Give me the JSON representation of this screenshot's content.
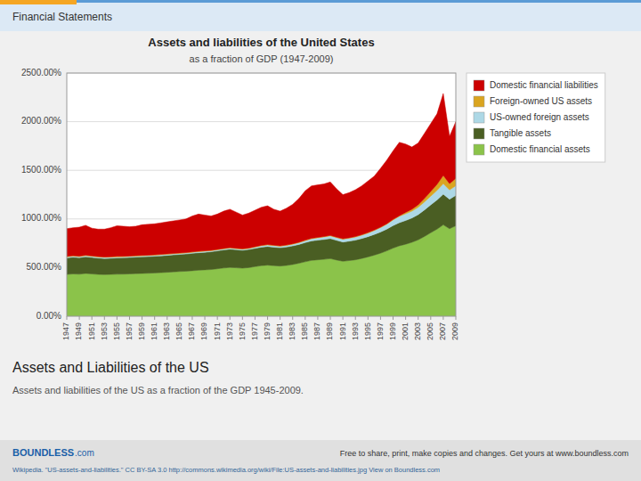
{
  "header": "Financial Statements",
  "heading": "Assets and Liabilities of the US",
  "description": "Assets and liabilities of the US as a fraction of the GDP 1945-2009.",
  "brand": "BOUNDLESS",
  "brand_suffix": ".com",
  "footer_note": "Free to share, print, make copies and changes. Get yours at www.boundless.com",
  "source": "Wikipedia. \"US-assets-and-liabilities.\" CC BY-SA 3.0 http://commons.wikimedia.org/wiki/File:US-assets-and-liabilities.jpg View on Boundless.com",
  "chart_data": {
    "type": "area",
    "stacked": true,
    "title": "Assets and liabilities of the United States",
    "subtitle": "as a fraction of GDP (1947-2009)",
    "x": [
      1947,
      1948,
      1949,
      1950,
      1951,
      1952,
      1953,
      1954,
      1955,
      1956,
      1957,
      1958,
      1959,
      1960,
      1961,
      1962,
      1963,
      1964,
      1965,
      1966,
      1967,
      1968,
      1969,
      1970,
      1971,
      1972,
      1973,
      1974,
      1975,
      1976,
      1977,
      1978,
      1979,
      1980,
      1981,
      1982,
      1983,
      1984,
      1985,
      1986,
      1987,
      1988,
      1989,
      1990,
      1991,
      1992,
      1993,
      1994,
      1995,
      1996,
      1997,
      1998,
      1999,
      2000,
      2001,
      2002,
      2003,
      2004,
      2005,
      2006,
      2007,
      2008,
      2009
    ],
    "series": [
      {
        "name": "Domestic financial assets",
        "color": "#8BC34A",
        "values": [
          430,
          435,
          432,
          440,
          435,
          430,
          428,
          430,
          432,
          433,
          435,
          438,
          440,
          442,
          445,
          448,
          452,
          456,
          460,
          463,
          468,
          473,
          477,
          480,
          488,
          496,
          502,
          498,
          494,
          500,
          510,
          520,
          525,
          520,
          516,
          522,
          532,
          545,
          560,
          574,
          580,
          585,
          592,
          578,
          565,
          572,
          580,
          594,
          610,
          628,
          648,
          672,
          700,
          724,
          740,
          760,
          785,
          820,
          858,
          895,
          940,
          900,
          930
        ]
      },
      {
        "name": "Tangible assets",
        "color": "#4A5E23",
        "values": [
          170,
          172,
          170,
          172,
          170,
          168,
          166,
          166,
          168,
          168,
          169,
          170,
          171,
          171,
          172,
          173,
          174,
          175,
          176,
          177,
          179,
          180,
          181,
          183,
          184,
          186,
          188,
          186,
          184,
          186,
          188,
          190,
          192,
          190,
          188,
          189,
          191,
          193,
          197,
          200,
          202,
          204,
          206,
          202,
          198,
          200,
          202,
          205,
          208,
          213,
          218,
          224,
          232,
          238,
          244,
          250,
          260,
          273,
          287,
          300,
          315,
          303,
          312
        ]
      },
      {
        "name": "US-owned foreign assets",
        "color": "#ADD8E6",
        "values": [
          10,
          10,
          10,
          10,
          10,
          10,
          10,
          10,
          10,
          10,
          10,
          10,
          10,
          10,
          10,
          10,
          10,
          10,
          10,
          10,
          10,
          10,
          10,
          10,
          10,
          10,
          10,
          10,
          10,
          10,
          12,
          14,
          15,
          15,
          15,
          16,
          17,
          18,
          20,
          22,
          24,
          26,
          28,
          28,
          28,
          30,
          32,
          34,
          37,
          40,
          45,
          50,
          58,
          65,
          68,
          70,
          75,
          82,
          90,
          98,
          108,
          95,
          100
        ]
      },
      {
        "name": "Foreign-owned US assets",
        "color": "#DAA520",
        "values": [
          5,
          5,
          5,
          5,
          5,
          5,
          5,
          5,
          5,
          5,
          5,
          5,
          5,
          5,
          5,
          5,
          5,
          5,
          5,
          5,
          5,
          5,
          5,
          5,
          5,
          5,
          5,
          5,
          5,
          5,
          5,
          5,
          5,
          5,
          5,
          5,
          5,
          5,
          5,
          5,
          5,
          5,
          5,
          5,
          5,
          5,
          5,
          5,
          5,
          5,
          5,
          5,
          5,
          5,
          15,
          20,
          25,
          35,
          48,
          62,
          85,
          65,
          75
        ]
      },
      {
        "name": "Domestic financial liabilities",
        "color": "#CC0000",
        "values": [
          285,
          288,
          298,
          308,
          285,
          282,
          286,
          299,
          315,
          309,
          301,
          302,
          314,
          317,
          318,
          324,
          329,
          334,
          339,
          345,
          368,
          382,
          367,
          352,
          363,
          383,
          395,
          371,
          347,
          359,
          375,
          391,
          398,
          370,
          356,
          378,
          405,
          449,
          508,
          539,
          539,
          540,
          549,
          497,
          454,
          463,
          481,
          502,
          530,
          554,
          604,
          654,
          705,
          756,
          703,
          640,
          635,
          670,
          697,
          725,
          842,
          487,
          583
        ]
      }
    ],
    "xlim": [
      1947,
      2009
    ],
    "xticks": [
      1947,
      1949,
      1951,
      1953,
      1955,
      1957,
      1959,
      1961,
      1963,
      1965,
      1967,
      1969,
      1971,
      1973,
      1975,
      1977,
      1979,
      1981,
      1983,
      1985,
      1987,
      1989,
      1991,
      1993,
      1995,
      1997,
      1999,
      2001,
      2003,
      2005,
      2007,
      2009
    ],
    "ylim": [
      0,
      2500
    ],
    "yticks": [
      {
        "value": 0,
        "label": "0.00%"
      },
      {
        "value": 500,
        "label": "500.00%"
      },
      {
        "value": 1000,
        "label": "1000.00%"
      },
      {
        "value": 1500,
        "label": "1500.00%"
      },
      {
        "value": 2000,
        "label": "2000.00%"
      },
      {
        "value": 2500,
        "label": "2500.00%"
      }
    ],
    "grid": true,
    "legend": "right"
  }
}
